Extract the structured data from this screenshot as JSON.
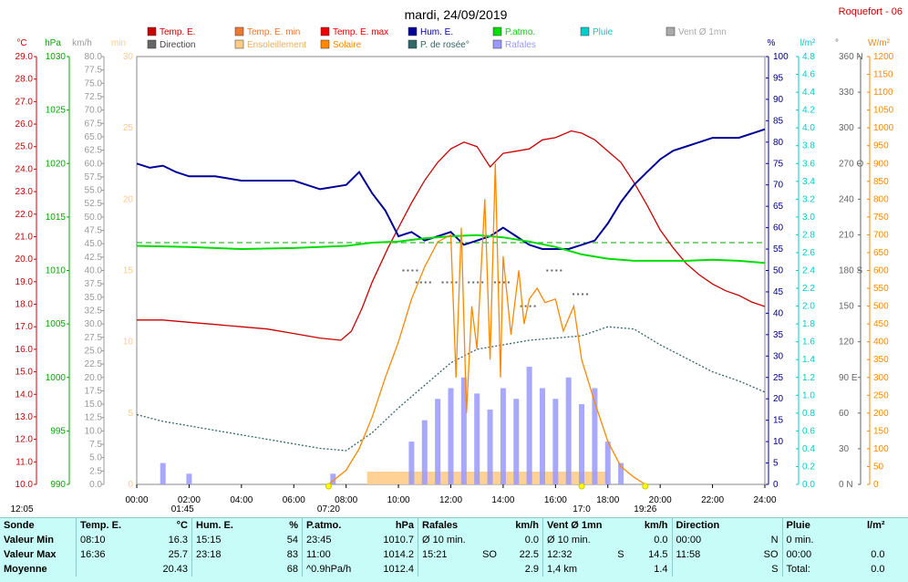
{
  "header": {
    "title": "mardi, 24/09/2019",
    "station": "Roquefort - 06"
  },
  "legend": [
    {
      "label": "Temp. E.",
      "color": "#cc0000"
    },
    {
      "label": "Direction",
      "color": "#666666"
    },
    {
      "label": "Temp. E. min",
      "color": "#ee7733"
    },
    {
      "label": "Ensoleillement",
      "color": "#ffcc88"
    },
    {
      "label": "Temp. E. max",
      "color": "#ee0000"
    },
    {
      "label": "Solaire",
      "color": "#ff8800"
    },
    {
      "label": "Hum. E.",
      "color": "#000099"
    },
    {
      "label": "P. de rosée°",
      "color": "#336666"
    },
    {
      "label": "P.atmo.",
      "color": "#00dd00"
    },
    {
      "label": "Rafales",
      "color": "#9999ff"
    },
    {
      "label": "Pluie",
      "color": "#00cccc"
    },
    {
      "label": "Vent Ø 1mn",
      "color": "#aaaaaa"
    }
  ],
  "axes": {
    "temp": {
      "unit": "°C",
      "min": 10,
      "max": 29,
      "step": 1,
      "color": "#cc0000",
      "ticks": [
        "10.0",
        "11.0",
        "12.0",
        "13.0",
        "14.0",
        "15.0",
        "16.0",
        "17.0",
        "18.0",
        "19.0",
        "20.0",
        "21.0",
        "22.0",
        "23.0",
        "24.0",
        "25.0",
        "26.0",
        "27.0",
        "28.0",
        "29.0"
      ]
    },
    "press": {
      "unit": "hPa",
      "color": "#00aa00",
      "ticks": [
        "990",
        "995",
        "1000",
        "1005",
        "1010",
        "1015",
        "1020",
        "1025",
        "1030"
      ]
    },
    "wind": {
      "unit": "km/h",
      "color": "#999999",
      "ticks": [
        "0.0",
        "2.5",
        "5.0",
        "7.5",
        "10.0",
        "12.5",
        "15.0",
        "17.5",
        "20.0",
        "22.5",
        "25.0",
        "27.5",
        "30.0",
        "32.5",
        "35.0",
        "37.5",
        "40.0",
        "42.5",
        "45.0",
        "47.5",
        "50.0",
        "52.5",
        "55.0",
        "57.5",
        "60.0",
        "62.5",
        "65.0",
        "67.5",
        "70.0",
        "72.5",
        "75.0",
        "77.5",
        "80.0"
      ]
    },
    "min": {
      "unit": "min",
      "color": "#ffcc88",
      "ticks": [
        "0",
        "5",
        "10",
        "15",
        "20",
        "25",
        "30"
      ]
    },
    "hum": {
      "unit": "%",
      "color": "#000080",
      "ticks": [
        "0",
        "5",
        "10",
        "15",
        "20",
        "25",
        "30",
        "35",
        "40",
        "45",
        "50",
        "55",
        "60",
        "65",
        "70",
        "75",
        "80",
        "85",
        "90",
        "95",
        "100"
      ]
    },
    "rain": {
      "unit": "l/m²",
      "color": "#00cccc",
      "ticks": [
        "0.0",
        "0.2",
        "0.4",
        "0.6",
        "0.8",
        "1.0",
        "1.2",
        "1.4",
        "1.6",
        "1.8",
        "2.0",
        "2.2",
        "2.4",
        "2.6",
        "2.8",
        "3.0",
        "3.2",
        "3.4",
        "3.6",
        "3.8",
        "4.0",
        "4.2",
        "4.4",
        "4.6",
        "4.8"
      ]
    },
    "dir": {
      "unit": "°",
      "color": "#666666",
      "ticks": [
        "0",
        "30",
        "60",
        "90",
        "120",
        "150",
        "180",
        "210",
        "240",
        "270",
        "300",
        "330",
        "360"
      ],
      "labels": {
        "0": "N",
        "90": "E",
        "180": "S",
        "270": "O",
        "360": "N"
      }
    },
    "solar": {
      "unit": "W/m²",
      "color": "#ff8800",
      "ticks": [
        "0",
        "50",
        "100",
        "150",
        "200",
        "250",
        "300",
        "350",
        "400",
        "450",
        "500",
        "550",
        "600",
        "650",
        "700",
        "750",
        "800",
        "850",
        "900",
        "950",
        "1000",
        "1050",
        "1100",
        "1150",
        "1200"
      ]
    },
    "x": {
      "ticks": [
        "00:00",
        "02:00",
        "04:00",
        "06:00",
        "08:00",
        "10:00",
        "12:00",
        "14:00",
        "16:00",
        "18:00",
        "20:00",
        "22:00",
        "24:00"
      ]
    }
  },
  "sun_marks": [
    "12:05",
    "01:45",
    "07:20",
    "17:0",
    "19:26"
  ],
  "chart_data": {
    "type": "line",
    "title": "mardi, 24/09/2019",
    "x_unit": "hour",
    "series": [
      {
        "name": "Temp. E.",
        "axis": "temp",
        "color": "#cc0000",
        "points": [
          [
            0,
            17.3
          ],
          [
            1,
            17.3
          ],
          [
            2,
            17.2
          ],
          [
            3,
            17.1
          ],
          [
            4,
            17.0
          ],
          [
            5,
            16.9
          ],
          [
            6,
            16.7
          ],
          [
            7,
            16.5
          ],
          [
            7.8,
            16.4
          ],
          [
            8.2,
            16.8
          ],
          [
            8.6,
            17.8
          ],
          [
            9,
            19.0
          ],
          [
            9.6,
            20.5
          ],
          [
            10,
            21.4
          ],
          [
            10.5,
            22.5
          ],
          [
            11,
            23.5
          ],
          [
            11.5,
            24.3
          ],
          [
            12,
            24.9
          ],
          [
            12.5,
            25.2
          ],
          [
            13,
            25.0
          ],
          [
            13.5,
            24.1
          ],
          [
            14,
            24.7
          ],
          [
            14.5,
            24.8
          ],
          [
            15,
            24.9
          ],
          [
            15.5,
            25.3
          ],
          [
            16,
            25.4
          ],
          [
            16.6,
            25.7
          ],
          [
            17,
            25.6
          ],
          [
            17.5,
            25.3
          ],
          [
            18,
            24.8
          ],
          [
            18.5,
            24.3
          ],
          [
            19,
            23.4
          ],
          [
            19.5,
            22.4
          ],
          [
            20,
            21.3
          ],
          [
            20.5,
            20.5
          ],
          [
            21,
            19.8
          ],
          [
            21.5,
            19.3
          ],
          [
            22,
            18.9
          ],
          [
            22.5,
            18.6
          ],
          [
            23,
            18.4
          ],
          [
            23.5,
            18.1
          ],
          [
            24,
            17.9
          ]
        ]
      },
      {
        "name": "Hum. E.",
        "axis": "hum",
        "color": "#000099",
        "points": [
          [
            0,
            75
          ],
          [
            0.5,
            74
          ],
          [
            1,
            74.5
          ],
          [
            1.5,
            73
          ],
          [
            2,
            72
          ],
          [
            3,
            72
          ],
          [
            4,
            71
          ],
          [
            5,
            71
          ],
          [
            6,
            71
          ],
          [
            6.5,
            70
          ],
          [
            7,
            69
          ],
          [
            8,
            70
          ],
          [
            8.5,
            73
          ],
          [
            9,
            68
          ],
          [
            9.5,
            64
          ],
          [
            10,
            58
          ],
          [
            10.5,
            59
          ],
          [
            11,
            57
          ],
          [
            12,
            59
          ],
          [
            12.5,
            56
          ],
          [
            13,
            57
          ],
          [
            13.5,
            58
          ],
          [
            14,
            60
          ],
          [
            14.5,
            58
          ],
          [
            15,
            56
          ],
          [
            15.5,
            55
          ],
          [
            16,
            55
          ],
          [
            16.5,
            55
          ],
          [
            17,
            56
          ],
          [
            17.5,
            57
          ],
          [
            18,
            61
          ],
          [
            18.5,
            66
          ],
          [
            19,
            70
          ],
          [
            19.5,
            73
          ],
          [
            20,
            76
          ],
          [
            20.5,
            78
          ],
          [
            21,
            79
          ],
          [
            21.5,
            80
          ],
          [
            22,
            81
          ],
          [
            23,
            81
          ],
          [
            24,
            83
          ]
        ]
      },
      {
        "name": "P. de rosée°",
        "axis": "temp",
        "color": "#336666",
        "dashed": true,
        "points": [
          [
            0,
            13.1
          ],
          [
            1,
            12.8
          ],
          [
            2,
            12.6
          ],
          [
            3,
            12.4
          ],
          [
            4,
            12.2
          ],
          [
            5,
            12.0
          ],
          [
            6,
            11.8
          ],
          [
            7,
            11.6
          ],
          [
            8,
            11.5
          ],
          [
            9,
            12.3
          ],
          [
            10,
            13.4
          ],
          [
            11,
            14.4
          ],
          [
            12,
            15.4
          ],
          [
            13,
            16.0
          ],
          [
            14,
            16.2
          ],
          [
            15,
            16.4
          ],
          [
            16,
            16.5
          ],
          [
            17,
            16.6
          ],
          [
            18,
            17.0
          ],
          [
            19,
            16.9
          ],
          [
            20,
            16.2
          ],
          [
            21,
            15.6
          ],
          [
            22,
            15.0
          ],
          [
            23,
            14.6
          ],
          [
            24,
            14.1
          ]
        ]
      },
      {
        "name": "P.atmo.",
        "axis": "press",
        "color": "#00dd00",
        "points": [
          [
            0,
            1012.3
          ],
          [
            2,
            1012.2
          ],
          [
            4,
            1012.0
          ],
          [
            6,
            1012.1
          ],
          [
            8,
            1012.3
          ],
          [
            9,
            1012.6
          ],
          [
            10,
            1012.7
          ],
          [
            11,
            1013.0
          ],
          [
            12,
            1013.2
          ],
          [
            13,
            1013.3
          ],
          [
            14,
            1013.1
          ],
          [
            15,
            1012.7
          ],
          [
            16,
            1012.2
          ],
          [
            17,
            1011.5
          ],
          [
            18,
            1011.1
          ],
          [
            19,
            1010.9
          ],
          [
            20,
            1010.9
          ],
          [
            21,
            1010.9
          ],
          [
            22,
            1011.0
          ],
          [
            23,
            1010.9
          ],
          [
            24,
            1010.7
          ]
        ]
      },
      {
        "name": "Solaire",
        "axis": "solar",
        "color": "#ff8800",
        "points": [
          [
            7.33,
            0
          ],
          [
            8,
            40
          ],
          [
            8.5,
            100
          ],
          [
            9,
            190
          ],
          [
            9.5,
            300
          ],
          [
            10,
            400
          ],
          [
            10.5,
            520
          ],
          [
            11,
            610
          ],
          [
            11.5,
            680
          ],
          [
            12,
            700
          ],
          [
            12.2,
            300
          ],
          [
            12.4,
            720
          ],
          [
            12.6,
            200
          ],
          [
            12.8,
            500
          ],
          [
            13,
            380
          ],
          [
            13.3,
            800
          ],
          [
            13.5,
            350
          ],
          [
            13.7,
            900
          ],
          [
            13.9,
            300
          ],
          [
            14,
            640
          ],
          [
            14.3,
            420
          ],
          [
            14.6,
            600
          ],
          [
            14.8,
            450
          ],
          [
            15,
            520
          ],
          [
            15.3,
            550
          ],
          [
            15.6,
            510
          ],
          [
            16,
            520
          ],
          [
            16.3,
            430
          ],
          [
            16.7,
            500
          ],
          [
            17,
            350
          ],
          [
            17.5,
            230
          ],
          [
            18,
            120
          ],
          [
            18.5,
            50
          ],
          [
            19,
            20
          ],
          [
            19.43,
            0
          ]
        ]
      }
    ],
    "gusts_kmh": [
      [
        1,
        4
      ],
      [
        2,
        2
      ],
      [
        7.5,
        2
      ],
      [
        10.5,
        8
      ],
      [
        11,
        12
      ],
      [
        11.5,
        16
      ],
      [
        12,
        18
      ],
      [
        12.5,
        20
      ],
      [
        13,
        17
      ],
      [
        13.5,
        14
      ],
      [
        14,
        18
      ],
      [
        14.5,
        16
      ],
      [
        15,
        22
      ],
      [
        15.5,
        18
      ],
      [
        16,
        16
      ],
      [
        16.5,
        20
      ],
      [
        17,
        15
      ],
      [
        17.5,
        18
      ],
      [
        18,
        8
      ],
      [
        18.5,
        4
      ]
    ],
    "sunshine_min": [
      [
        8.8,
        10,
        1
      ],
      [
        10,
        11,
        1
      ],
      [
        11,
        13,
        1
      ],
      [
        13,
        14,
        1
      ],
      [
        14,
        15.5,
        1
      ],
      [
        15.5,
        18,
        1
      ]
    ],
    "direction_deg": [
      [
        10.5,
        180
      ],
      [
        11,
        170
      ],
      [
        12,
        170
      ],
      [
        13,
        170
      ],
      [
        14,
        170
      ],
      [
        15,
        150
      ],
      [
        16,
        180
      ],
      [
        17,
        160
      ]
    ]
  },
  "stats": {
    "headers": {
      "sonde": "Sonde",
      "temp": "Temp. E.",
      "temp_u": "°C",
      "hum": "Hum. E.",
      "hum_u": "%",
      "patmo": "P.atmo.",
      "patmo_u": "hPa",
      "raf": "Rafales",
      "raf_u": "km/h",
      "vent": "Vent Ø 1mn",
      "vent_u": "km/h",
      "dir": "Direction",
      "pluie": "Pluie",
      "pluie_u": "l/m²"
    },
    "rows": [
      {
        "label": "Valeur Min",
        "temp_t": "08:10",
        "temp_v": "16.3",
        "hum_t": "15:15",
        "hum_v": "54",
        "p_t": "23:45",
        "p_v": "1010.7",
        "r_t": "Ø 10 min.",
        "r_d": "",
        "r_v": "0.0",
        "v_t": "Ø 10 min.",
        "v_d": "",
        "v_v": "0.0",
        "d_t": "00:00",
        "d_v": "N",
        "pl_t": "0 min.",
        "pl_v": ""
      },
      {
        "label": "Valeur Max",
        "temp_t": "16:36",
        "temp_v": "25.7",
        "hum_t": "23:18",
        "hum_v": "83",
        "p_t": "11:00",
        "p_v": "1014.2",
        "r_t": "15:21",
        "r_d": "SO",
        "r_v": "22.5",
        "v_t": "12:32",
        "v_d": "S",
        "v_v": "14.5",
        "d_t": "11:58",
        "d_v": "SO",
        "pl_t": "00:00",
        "pl_v": "0.0"
      },
      {
        "label": "Moyenne",
        "temp_t": "",
        "temp_v": "20.43",
        "hum_t": "",
        "hum_v": "68",
        "p_t": "^0.9hPa/h",
        "p_v": "1012.4",
        "r_t": "",
        "r_d": "",
        "r_v": "2.9",
        "v_t": "1,4 km",
        "v_d": "",
        "v_v": "1.4",
        "d_t": "",
        "d_v": "S",
        "pl_t": "Total:",
        "pl_v": "0.0"
      }
    ]
  }
}
